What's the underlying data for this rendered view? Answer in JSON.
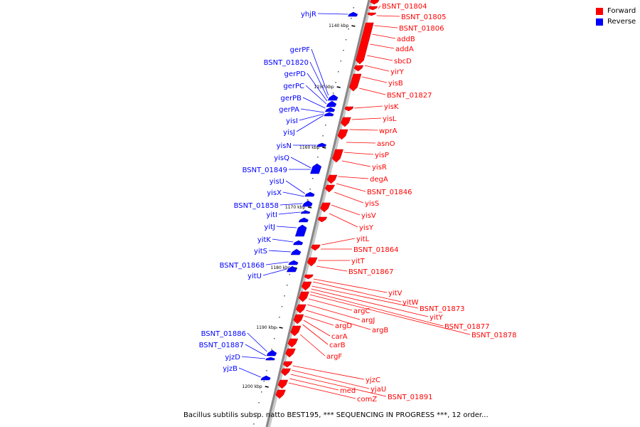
{
  "legend": {
    "forward_label": "Forward",
    "reverse_label": "Reverse",
    "forward_color": "#ff0000",
    "reverse_color": "#0000ff"
  },
  "caption": "Bacillus subtilis subsp. natto BEST195, *** SEQUENCING IN PROGRESS ***, 12 order...",
  "scale_labels": [
    "1140 kbp",
    "1150 kbp",
    "1160 kbp",
    "1170 kbp",
    "1180 kbp",
    "1190 kbp",
    "1200 kbp"
  ],
  "forward_genes": [
    "BSNT_01804",
    "BSNT_01805",
    "BSNT_01806",
    "addB",
    "addA",
    "sbcD",
    "yirY",
    "yisB",
    "BSNT_01827",
    "yisK",
    "yisL",
    "wprA",
    "asnO",
    "yisP",
    "yisR",
    "degA",
    "BSNT_01846",
    "yisS",
    "yisV",
    "yisY",
    "yitL",
    "BSNT_01864",
    "yitT",
    "BSNT_01867",
    "yitV",
    "yitW",
    "BSNT_01873",
    "yitY",
    "BSNT_01877",
    "BSNT_01878",
    "argC",
    "argJ",
    "argB",
    "argD",
    "carA",
    "carB",
    "argF",
    "yjzC",
    "yjaU",
    "BSNT_01891",
    "med",
    "comZ"
  ],
  "reverse_genes": [
    "yhjR",
    "gerPF",
    "BSNT_01820",
    "gerPD",
    "gerPC",
    "gerPB",
    "gerPA",
    "yisI",
    "yisJ",
    "yisN",
    "yisQ",
    "BSNT_01849",
    "yisU",
    "yisX",
    "BSNT_01858",
    "yitI",
    "yitJ",
    "yitK",
    "yitS",
    "BSNT_01868",
    "yitU",
    "BSNT_01886",
    "BSNT_01887",
    "yjzD",
    "yjzB"
  ]
}
